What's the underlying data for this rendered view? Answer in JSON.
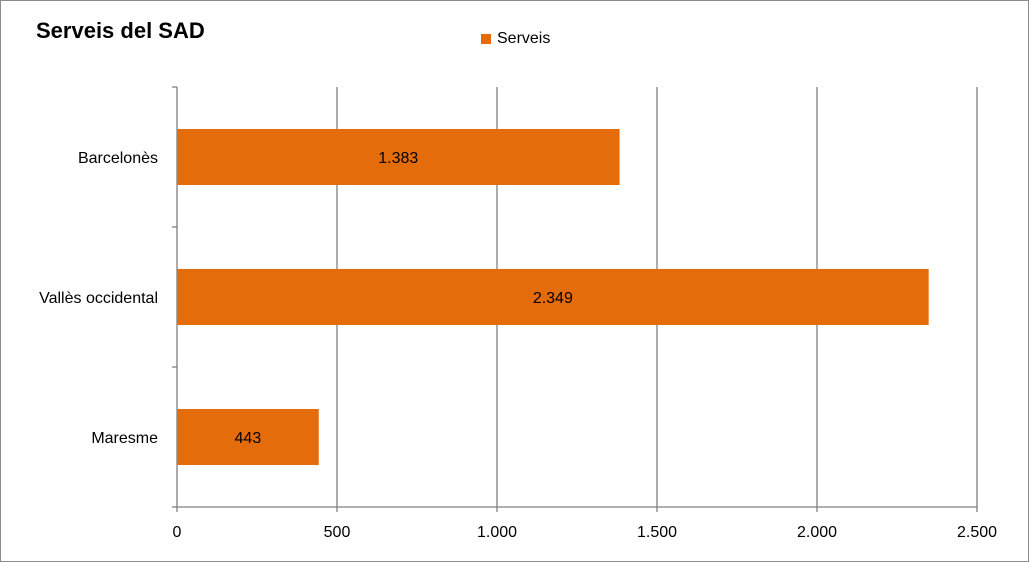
{
  "chart_data": {
    "type": "bar",
    "orientation": "horizontal",
    "title": "Serveis del SAD",
    "categories": [
      "Barcelonès",
      "Vallès occidental",
      "Maresme"
    ],
    "series": [
      {
        "name": "Serveis",
        "values": [
          1383,
          2349,
          443
        ],
        "labels": [
          "1.383",
          "2.349",
          "443"
        ]
      }
    ],
    "xlim": [
      0,
      2500
    ],
    "x_ticks": [
      0,
      500,
      1000,
      1500,
      2000,
      2500
    ],
    "x_tick_labels": [
      "0",
      "500",
      "1.000",
      "1.500",
      "2.000",
      "2.500"
    ],
    "grid": true,
    "legend_position": "top-center",
    "bar_color": "#E46C0A",
    "grid_color": "#808080"
  }
}
